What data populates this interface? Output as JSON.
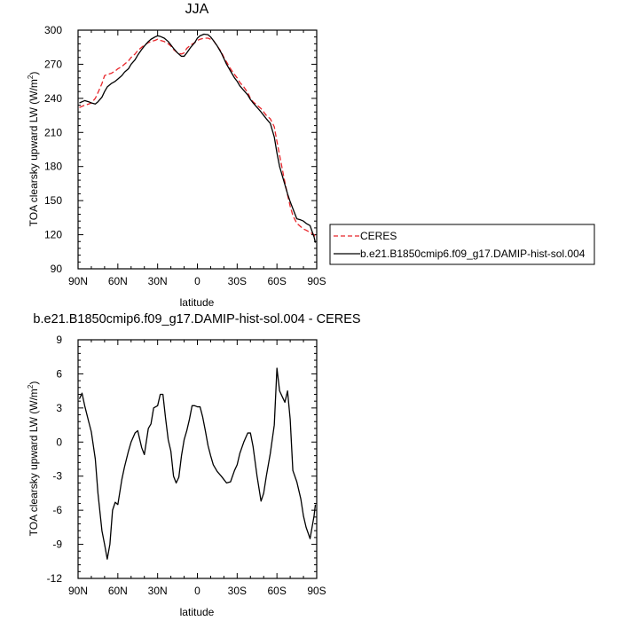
{
  "chart_data": [
    {
      "type": "line",
      "title": "JJA",
      "xlabel": "latitude",
      "ylabel": "TOA clearsky upward LW (W/m",
      "ylabel_sup": "2",
      "ylabel_end": ")",
      "xlim": [
        90,
        -90
      ],
      "ylim": [
        90,
        300
      ],
      "x_ticks": [
        90,
        60,
        30,
        0,
        -30,
        -60,
        -90
      ],
      "x_tick_labels": [
        "90N",
        "60N",
        "30N",
        "0",
        "30S",
        "60S",
        "90S"
      ],
      "y_ticks": [
        90,
        120,
        150,
        180,
        210,
        240,
        270,
        300
      ],
      "y_tick_labels": [
        "90",
        "120",
        "150",
        "180",
        "210",
        "240",
        "270",
        "300"
      ],
      "legend_position": "right",
      "series": [
        {
          "name": "CERES",
          "color": "#e8262b",
          "dash": true,
          "x": [
            89,
            85,
            82,
            80,
            77,
            75,
            72,
            70,
            68,
            65,
            62,
            60,
            57,
            55,
            52,
            50,
            47,
            45,
            42,
            40,
            37,
            35,
            32,
            30,
            28,
            25,
            22,
            20,
            18,
            15,
            12,
            10,
            8,
            5,
            2,
            0,
            -2,
            -5,
            -8,
            -10,
            -12,
            -15,
            -18,
            -20,
            -22,
            -25,
            -28,
            -30,
            -32,
            -35,
            -38,
            -40,
            -42,
            -45,
            -48,
            -50,
            -52,
            -55,
            -58,
            -60,
            -62,
            -65,
            -68,
            -70,
            -72,
            -75,
            -78,
            -80,
            -82,
            -85,
            -88,
            -89
          ],
          "y": [
            232,
            234,
            235,
            236,
            240,
            245,
            253,
            260,
            261,
            262,
            264,
            266,
            268,
            270,
            273,
            276,
            279,
            282,
            285,
            287,
            289,
            290,
            291,
            292,
            291,
            290,
            288,
            286,
            283,
            280,
            279,
            280,
            284,
            287,
            289,
            291,
            292,
            293,
            293,
            292,
            291,
            286,
            281,
            276,
            272,
            266,
            261,
            258,
            254,
            250,
            245,
            240,
            237,
            234,
            231,
            228,
            225,
            222,
            215,
            202,
            190,
            172,
            155,
            145,
            137,
            130,
            127,
            125,
            124,
            122,
            120,
            118
          ]
        },
        {
          "name": "b.e21.B1850cmip6.f09_g17.DAMIP-hist-sol.004",
          "color": "#000000",
          "dash": false,
          "x": [
            89,
            85,
            82,
            80,
            77,
            75,
            72,
            70,
            68,
            65,
            62,
            60,
            57,
            55,
            52,
            50,
            47,
            45,
            42,
            40,
            37,
            35,
            32,
            30,
            28,
            25,
            22,
            20,
            18,
            15,
            12,
            10,
            8,
            5,
            2,
            0,
            -2,
            -5,
            -8,
            -10,
            -12,
            -15,
            -18,
            -20,
            -22,
            -25,
            -28,
            -30,
            -32,
            -35,
            -38,
            -40,
            -42,
            -45,
            -48,
            -50,
            -52,
            -55,
            -58,
            -60,
            -62,
            -65,
            -68,
            -70,
            -72,
            -75,
            -78,
            -80,
            -82,
            -85,
            -88,
            -89
          ],
          "y": [
            236,
            238,
            237,
            236,
            235,
            237,
            241,
            246,
            250,
            253,
            255,
            257,
            260,
            263,
            266,
            270,
            274,
            278,
            283,
            286,
            290,
            292,
            294,
            295,
            294.5,
            293,
            290,
            287,
            284,
            280,
            277,
            277,
            280,
            285,
            289,
            293,
            295,
            296.5,
            296,
            294,
            291,
            286,
            280,
            275,
            270,
            264,
            258,
            255,
            251,
            247,
            243,
            239,
            236,
            232,
            228,
            225,
            222,
            218,
            206,
            192,
            180,
            168,
            156,
            149,
            143,
            134,
            133,
            132,
            130,
            128,
            118,
            113
          ]
        }
      ]
    },
    {
      "type": "line",
      "title": "b.e21.B1850cmip6.f09_g17.DAMIP-hist-sol.004 - CERES",
      "xlabel": "latitude",
      "ylabel": "TOA clearsky upward LW (W/m",
      "ylabel_sup": "2",
      "ylabel_end": ")",
      "xlim": [
        90,
        -90
      ],
      "ylim": [
        -12,
        9
      ],
      "x_ticks": [
        90,
        60,
        30,
        0,
        -30,
        -60,
        -90
      ],
      "x_tick_labels": [
        "90N",
        "60N",
        "30N",
        "0",
        "30S",
        "60S",
        "90S"
      ],
      "y_ticks": [
        -12,
        -9,
        -6,
        -3,
        0,
        3,
        6,
        9
      ],
      "y_tick_labels": [
        "-12",
        "-9",
        "-6",
        "-3",
        "0",
        "3",
        "6",
        "9"
      ],
      "series": [
        {
          "color": "#000000",
          "dash": false,
          "x": [
            89,
            87,
            85,
            82,
            80,
            77,
            75,
            72,
            70,
            68,
            66,
            64,
            62,
            60,
            57,
            55,
            52,
            50,
            47,
            45,
            42,
            40,
            37,
            35,
            33,
            30,
            28,
            26,
            24,
            22,
            20,
            18,
            16,
            14,
            12,
            10,
            8,
            6,
            4,
            2,
            0,
            -2,
            -4,
            -6,
            -8,
            -10,
            -12,
            -15,
            -18,
            -20,
            -22,
            -25,
            -28,
            -30,
            -32,
            -35,
            -38,
            -40,
            -42,
            -45,
            -48,
            -50,
            -52,
            -55,
            -58,
            -60,
            -62,
            -64,
            -66,
            -68,
            -70,
            -72,
            -75,
            -78,
            -80,
            -82,
            -85,
            -88,
            -89
          ],
          "y": [
            3.8,
            4.3,
            3.2,
            1.8,
            0.9,
            -1.5,
            -4.5,
            -7.8,
            -9.0,
            -10.3,
            -9.0,
            -6.0,
            -5.3,
            -5.5,
            -3.3,
            -2.2,
            -0.8,
            0.0,
            0.8,
            1.0,
            -0.5,
            -1.1,
            1.2,
            1.6,
            3.0,
            3.2,
            4.2,
            4.2,
            2.1,
            0.2,
            -0.8,
            -3.0,
            -3.6,
            -3.1,
            -1.2,
            0.2,
            1.0,
            2.0,
            3.2,
            3.2,
            3.1,
            3.1,
            2.2,
            1.0,
            -0.3,
            -1.2,
            -2.0,
            -2.6,
            -3.0,
            -3.3,
            -3.6,
            -3.5,
            -2.5,
            -2.0,
            -1.0,
            0.0,
            0.8,
            0.8,
            -0.4,
            -3.0,
            -5.2,
            -4.5,
            -3.0,
            -1.0,
            1.5,
            6.5,
            4.5,
            4.0,
            3.5,
            4.5,
            2.0,
            -2.5,
            -3.5,
            -5.0,
            -6.5,
            -7.5,
            -8.5,
            -6.5,
            -5.5
          ]
        }
      ]
    }
  ]
}
